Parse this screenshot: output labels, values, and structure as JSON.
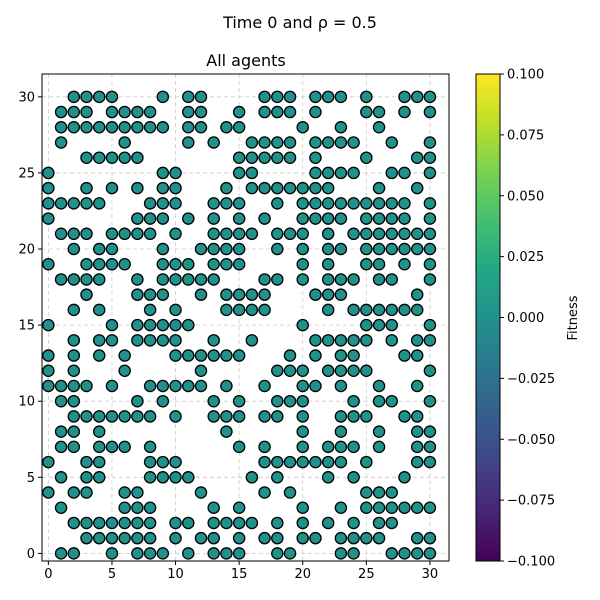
{
  "figure": {
    "suptitle": "Time 0 and ρ =  0.5"
  },
  "chart_data": {
    "type": "scatter",
    "title": "All agents",
    "xlabel": "",
    "ylabel": "",
    "xlim": [
      -0.5,
      31.5
    ],
    "ylim": [
      -0.5,
      31.5
    ],
    "x_ticks": [
      0,
      5,
      10,
      15,
      20,
      25,
      30
    ],
    "y_ticks": [
      0,
      5,
      10,
      15,
      20,
      25,
      30
    ],
    "grid": true,
    "marker_color": "#21918c",
    "marker_edge_color": "#000000",
    "fitness_value": 0.0,
    "colorbar": {
      "label": "Fitness",
      "colormap": "viridis",
      "min": -0.1,
      "max": 0.1,
      "ticks": [
        -0.1,
        -0.075,
        -0.05,
        -0.025,
        0.0,
        0.025,
        0.05,
        0.075,
        0.1
      ],
      "tick_labels": [
        "−0.100",
        "−0.075",
        "−0.050",
        "−0.025",
        "0.000",
        "0.025",
        "0.050",
        "0.075",
        "0.100"
      ]
    },
    "rows": {
      "0": [
        1,
        2,
        5,
        7,
        8,
        9,
        11,
        13,
        14,
        15,
        18,
        19,
        23,
        24,
        27,
        28,
        29,
        30
      ],
      "1": [
        3,
        4,
        5,
        6,
        7,
        8,
        10,
        12,
        13,
        15,
        17,
        18,
        20,
        21,
        23,
        24,
        25,
        26,
        29,
        30
      ],
      "2": [
        2,
        3,
        4,
        5,
        6,
        7,
        8,
        10,
        11,
        13,
        14,
        15,
        16,
        18,
        20,
        22,
        24,
        26,
        27
      ],
      "3": [
        1,
        6,
        7,
        8,
        13,
        15,
        20,
        23,
        25,
        26,
        27,
        28,
        29,
        30
      ],
      "4": [
        0,
        2,
        3,
        6,
        7,
        12,
        17,
        19,
        25,
        26,
        27
      ],
      "5": [
        1,
        3,
        4,
        8,
        9,
        10,
        11,
        16,
        18,
        22,
        24,
        28
      ],
      "6": [
        0,
        3,
        4,
        8,
        9,
        10,
        17,
        18,
        19,
        20,
        21,
        22,
        23,
        25,
        29,
        30
      ],
      "7": [
        1,
        2,
        4,
        5,
        6,
        8,
        15,
        17,
        20,
        22,
        23,
        24,
        26,
        29,
        30
      ],
      "8": [
        1,
        2,
        4,
        14,
        20,
        23,
        26,
        29,
        30
      ],
      "9": [
        2,
        3,
        4,
        5,
        6,
        7,
        8,
        10,
        13,
        14,
        15,
        17,
        18,
        20,
        23,
        24,
        25,
        28,
        29
      ],
      "10": [
        1,
        2,
        7,
        9,
        13,
        15,
        18,
        19,
        20,
        24,
        26,
        27,
        30
      ],
      "11": [
        0,
        1,
        2,
        3,
        5,
        8,
        9,
        10,
        11,
        12,
        14,
        17,
        20,
        21,
        23,
        26,
        29
      ],
      "12": [
        0,
        2,
        6,
        12,
        18,
        19,
        20,
        22,
        23,
        24,
        25,
        30
      ],
      "13": [
        0,
        2,
        4,
        6,
        10,
        11,
        12,
        13,
        14,
        15,
        19,
        21,
        23,
        24,
        28,
        29
      ],
      "14": [
        2,
        4,
        5,
        7,
        8,
        9,
        10,
        13,
        16,
        21,
        22,
        23,
        24,
        25,
        27,
        29,
        30
      ],
      "15": [
        0,
        5,
        7,
        8,
        9,
        10,
        11,
        20,
        25,
        26,
        27,
        30
      ],
      "16": [
        2,
        4,
        8,
        10,
        14,
        15,
        16,
        17,
        22,
        24,
        25,
        26,
        27,
        28,
        29
      ],
      "17": [
        3,
        7,
        8,
        9,
        12,
        14,
        15,
        16,
        17,
        21,
        22,
        23,
        29
      ],
      "18": [
        1,
        2,
        3,
        4,
        7,
        9,
        10,
        11,
        12,
        13,
        17,
        18,
        20,
        22,
        23,
        24,
        26,
        27,
        30
      ],
      "19": [
        0,
        3,
        4,
        5,
        6,
        9,
        10,
        11,
        13,
        14,
        15,
        20,
        22,
        25,
        26,
        28,
        30
      ],
      "20": [
        2,
        4,
        5,
        9,
        12,
        13,
        14,
        15,
        18,
        20,
        22,
        23,
        25,
        26,
        27,
        28,
        29,
        30
      ],
      "21": [
        1,
        2,
        3,
        5,
        6,
        7,
        8,
        10,
        13,
        14,
        15,
        16,
        18,
        19,
        20,
        22,
        24,
        25,
        26,
        27,
        28,
        29,
        30
      ],
      "22": [
        0,
        7,
        8,
        9,
        11,
        13,
        15,
        17,
        20,
        21,
        22,
        23,
        25,
        26,
        27,
        28,
        30
      ],
      "23": [
        0,
        1,
        2,
        3,
        4,
        8,
        9,
        10,
        13,
        14,
        15,
        18,
        20,
        21,
        22,
        23,
        24,
        25,
        26,
        27,
        28,
        30
      ],
      "24": [
        0,
        3,
        5,
        7,
        9,
        10,
        14,
        16,
        17,
        18,
        19,
        20,
        21,
        22,
        26,
        29
      ],
      "25": [
        0,
        9,
        10,
        15,
        16,
        21,
        22,
        23,
        24,
        27,
        28,
        30
      ],
      "26": [
        3,
        4,
        5,
        6,
        7,
        15,
        16,
        17,
        18,
        19,
        21,
        25,
        29,
        30
      ],
      "27": [
        1,
        6,
        11,
        13,
        16,
        17,
        18,
        19,
        21,
        22,
        23,
        24,
        27,
        30
      ],
      "28": [
        1,
        2,
        3,
        4,
        5,
        6,
        7,
        8,
        9,
        11,
        12,
        14,
        15,
        20,
        23,
        26
      ],
      "29": [
        1,
        2,
        3,
        5,
        6,
        7,
        8,
        11,
        12,
        15,
        17,
        18,
        19,
        21,
        25,
        26,
        28,
        30
      ],
      "30": [
        2,
        3,
        4,
        5,
        9,
        11,
        12,
        17,
        18,
        19,
        21,
        22,
        23,
        25,
        28,
        29,
        30
      ]
    }
  }
}
